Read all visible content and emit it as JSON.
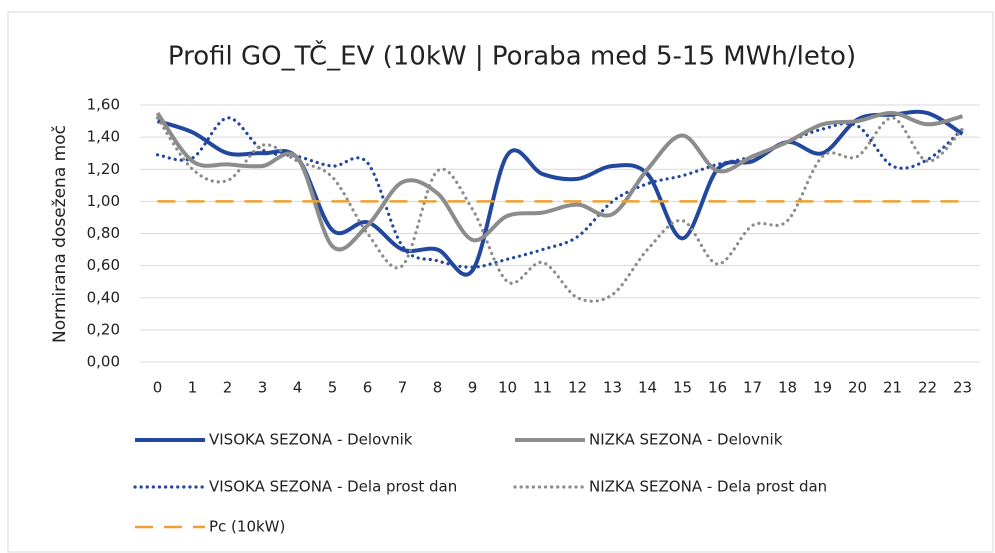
{
  "chart_data": {
    "type": "line",
    "title": "Profil GO_TČ_EV (10kW | Poraba med 5-15 MWh/leto)",
    "y_label": "Normirana dosežena moč",
    "categories": [
      "0",
      "1",
      "2",
      "3",
      "4",
      "5",
      "6",
      "7",
      "8",
      "9",
      "10",
      "11",
      "12",
      "13",
      "14",
      "15",
      "16",
      "17",
      "18",
      "19",
      "20",
      "21",
      "22",
      "23"
    ],
    "ylim": [
      0,
      1.6
    ],
    "yticks": [
      {
        "value": 0,
        "label": "0,00"
      },
      {
        "value": 0.2,
        "label": "0,20"
      },
      {
        "value": 0.4,
        "label": "0,40"
      },
      {
        "value": 0.6,
        "label": "0,60"
      },
      {
        "value": 0.8,
        "label": "0,80"
      },
      {
        "value": 1,
        "label": "1,00"
      },
      {
        "value": 1.2,
        "label": "1,20"
      },
      {
        "value": 1.4,
        "label": "1,40"
      },
      {
        "value": 1.6,
        "label": "1,60"
      }
    ],
    "grid": true,
    "legend": "bottom",
    "series": [
      {
        "name": "VISOKA SEZONA - Delovnik",
        "color": "#22479e",
        "style": "solid",
        "values": [
          1.5,
          1.43,
          1.3,
          1.3,
          1.27,
          0.82,
          0.87,
          0.7,
          0.7,
          0.57,
          1.29,
          1.17,
          1.14,
          1.22,
          1.17,
          0.77,
          1.2,
          1.25,
          1.37,
          1.3,
          1.51,
          1.54,
          1.55,
          1.42
        ]
      },
      {
        "name": "VISOKA SEZONA - Dela prost dan",
        "color": "#22479e",
        "style": "dotted",
        "values": [
          1.29,
          1.27,
          1.52,
          1.32,
          1.28,
          1.22,
          1.24,
          0.72,
          0.63,
          0.59,
          0.64,
          0.7,
          0.78,
          1.0,
          1.11,
          1.16,
          1.23,
          1.28,
          1.37,
          1.45,
          1.47,
          1.22,
          1.26,
          1.45
        ]
      },
      {
        "name": "NIZKA SEZONA - Delovnik",
        "color": "#8c8c8c",
        "style": "solid",
        "values": [
          1.55,
          1.25,
          1.23,
          1.22,
          1.27,
          0.72,
          0.85,
          1.12,
          1.05,
          0.76,
          0.91,
          0.93,
          0.98,
          0.92,
          1.2,
          1.41,
          1.19,
          1.28,
          1.37,
          1.48,
          1.5,
          1.55,
          1.48,
          1.53
        ]
      },
      {
        "name": "NIZKA SEZONA - Dela prost dan",
        "color": "#8c8c8c",
        "style": "dotted",
        "values": [
          1.52,
          1.2,
          1.13,
          1.35,
          1.25,
          1.15,
          0.8,
          0.6,
          1.19,
          0.95,
          0.5,
          0.62,
          0.4,
          0.42,
          0.7,
          0.88,
          0.61,
          0.85,
          0.88,
          1.28,
          1.28,
          1.52,
          1.25,
          1.45
        ]
      },
      {
        "name": "Pc (10kW)",
        "color": "#f0a030",
        "style": "dashed",
        "values": [
          1,
          1,
          1,
          1,
          1,
          1,
          1,
          1,
          1,
          1,
          1,
          1,
          1,
          1,
          1,
          1,
          1,
          1,
          1,
          1,
          1,
          1,
          1,
          1
        ]
      }
    ]
  }
}
